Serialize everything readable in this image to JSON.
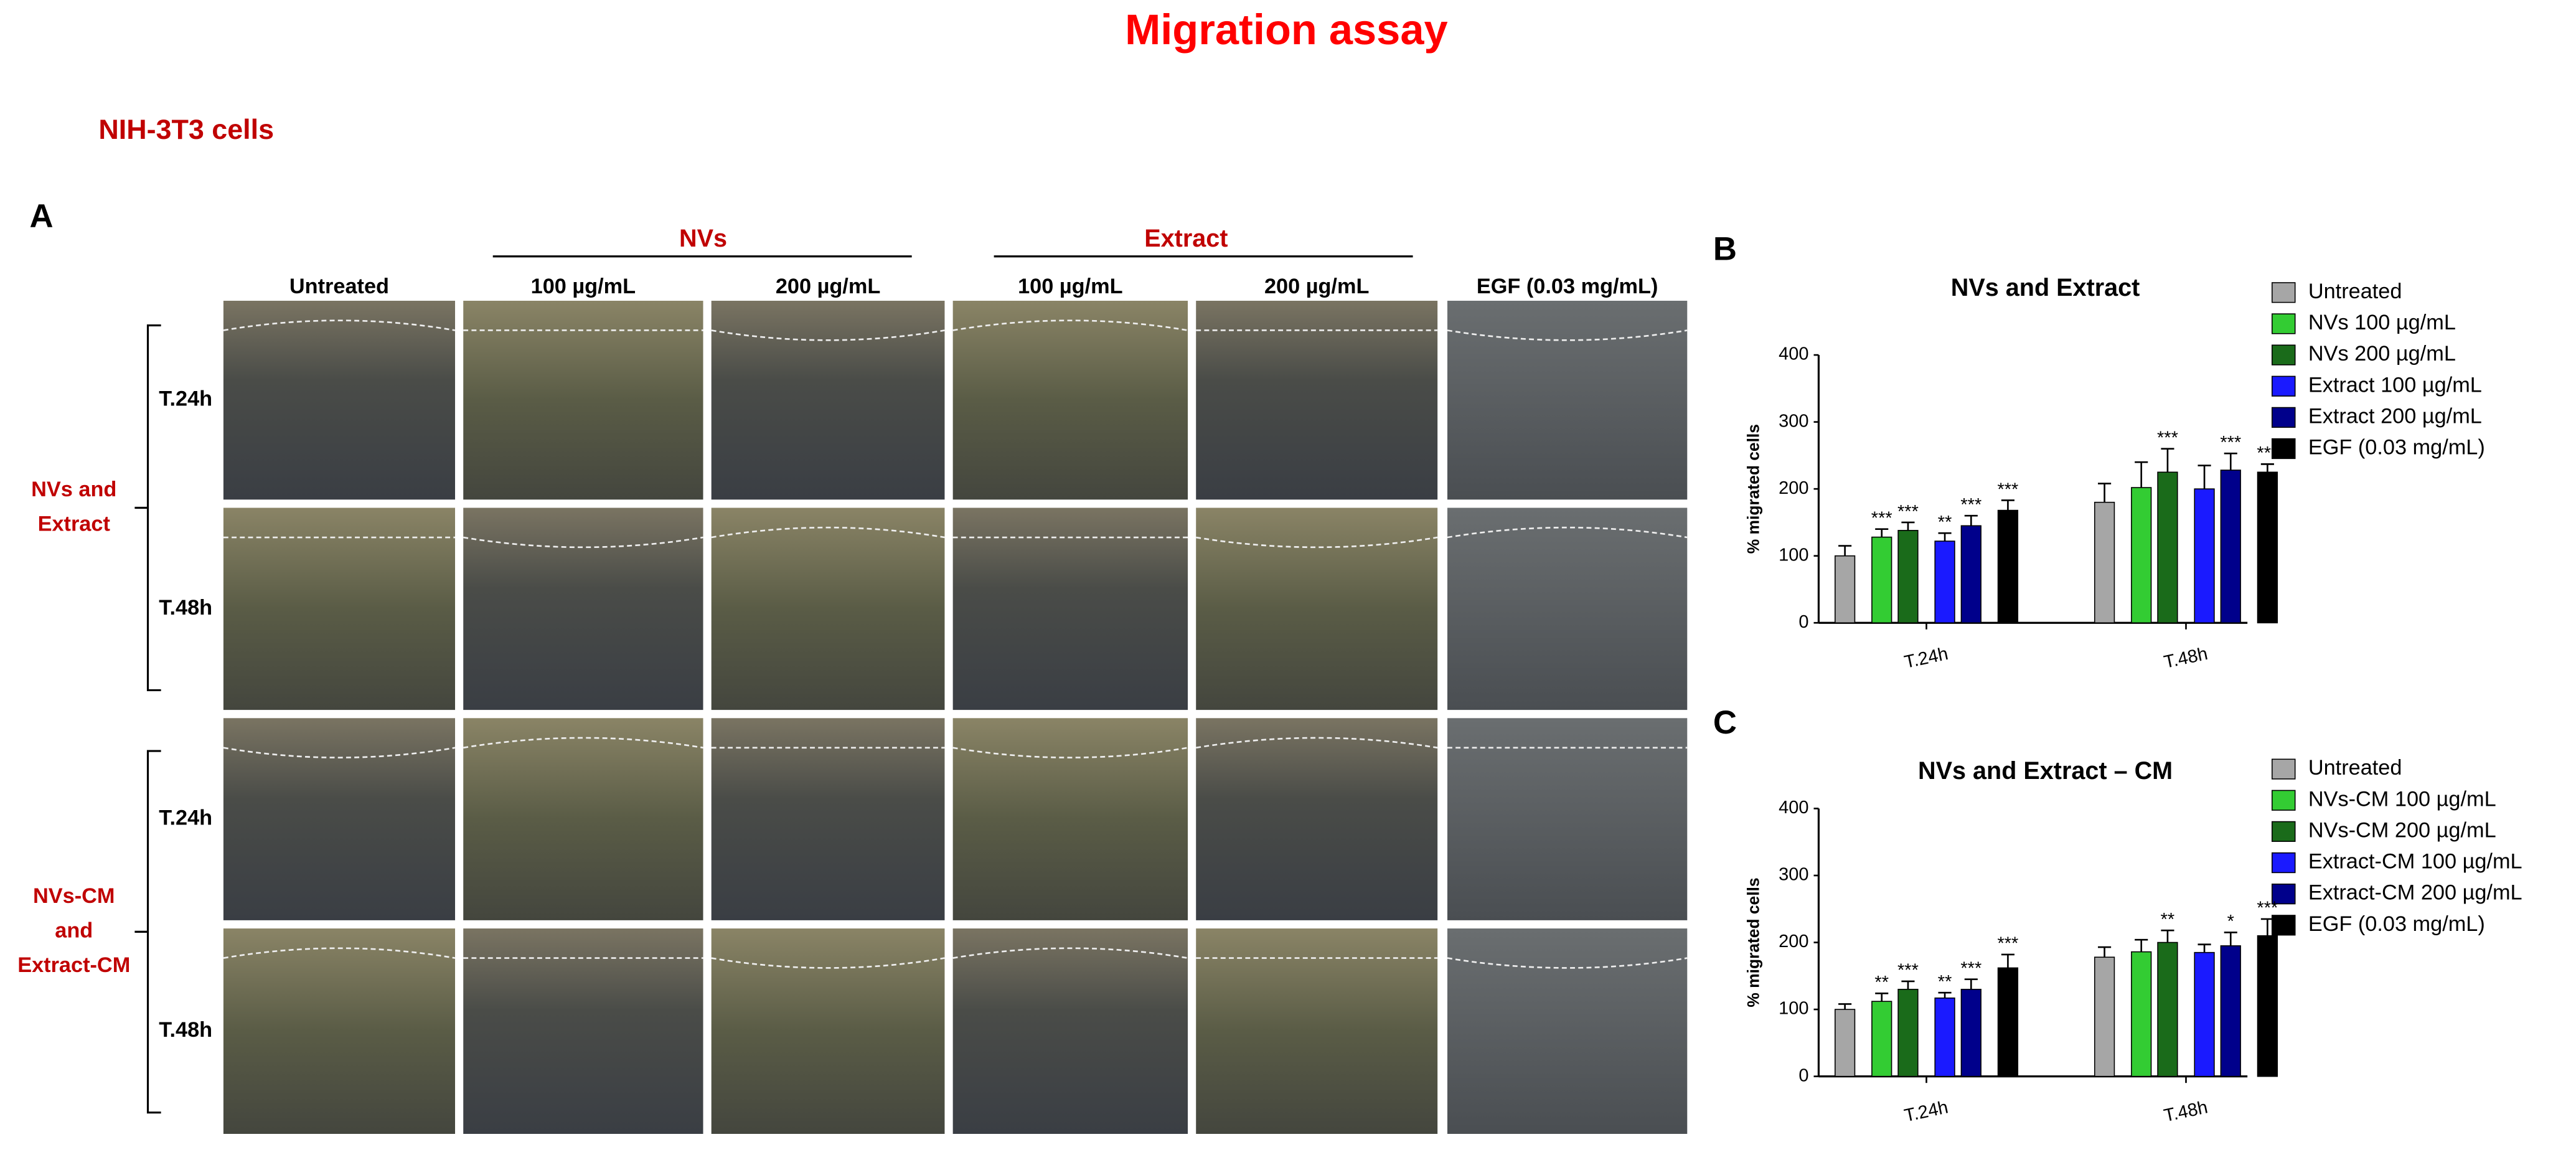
{
  "title": "Migration assay",
  "subtitle": "NIH-3T3 cells",
  "panel_a": {
    "label": "A",
    "column_groups": [
      {
        "label": "NVs"
      },
      {
        "label": "Extract"
      }
    ],
    "columns": [
      "Untreated",
      "100 µg/mL",
      "200 µg/mL",
      "100 µg/mL",
      "200 µg/mL",
      "EGF (0.03 mg/mL)"
    ],
    "row_groups": [
      {
        "label_lines": [
          "NVs and",
          "Extract"
        ],
        "rows": [
          "T.24h",
          "T.48h"
        ]
      },
      {
        "label_lines": [
          "NVs-CM",
          "and",
          "Extract-CM"
        ],
        "rows": [
          "T.24h",
          "T.48h"
        ]
      }
    ]
  },
  "chart_data": [
    {
      "type": "bar",
      "panel_label": "B",
      "title": "NVs and Extract",
      "ylabel": "% migrated cells",
      "categories": [
        "T.24h",
        "T.48h"
      ],
      "ylim": [
        0,
        400
      ],
      "yticks": [
        0,
        100,
        200,
        300,
        400
      ],
      "series": [
        {
          "name": "Untreated",
          "color": "#a6a6a6",
          "values": [
            100,
            180
          ],
          "errors": [
            15,
            28
          ],
          "significance": [
            null,
            null
          ]
        },
        {
          "name": "NVs 100 µg/mL",
          "color": "#33cc33",
          "values": [
            128,
            202
          ],
          "errors": [
            12,
            38
          ],
          "significance": [
            "***",
            null
          ]
        },
        {
          "name": "NVs 200 µg/mL",
          "color": "#1a6b1a",
          "values": [
            138,
            225
          ],
          "errors": [
            12,
            35
          ],
          "significance": [
            "***",
            "***"
          ]
        },
        {
          "name": "Extract 100 µg/mL",
          "color": "#1a1aff",
          "values": [
            122,
            200
          ],
          "errors": [
            12,
            35
          ],
          "significance": [
            "**",
            null
          ]
        },
        {
          "name": "Extract 200 µg/mL",
          "color": "#00008b",
          "values": [
            145,
            228
          ],
          "errors": [
            15,
            25
          ],
          "significance": [
            "***",
            "***"
          ]
        },
        {
          "name": "EGF (0.03 mg/mL)",
          "color": "#000000",
          "values": [
            168,
            225
          ],
          "errors": [
            15,
            12
          ],
          "significance": [
            "***",
            "***"
          ]
        }
      ]
    },
    {
      "type": "bar",
      "panel_label": "C",
      "title": "NVs and Extract – CM",
      "ylabel": "% migrated cells",
      "categories": [
        "T.24h",
        "T.48h"
      ],
      "ylim": [
        0,
        400
      ],
      "yticks": [
        0,
        100,
        200,
        300,
        400
      ],
      "series": [
        {
          "name": "Untreated",
          "color": "#a6a6a6",
          "values": [
            100,
            178
          ],
          "errors": [
            8,
            15
          ],
          "significance": [
            null,
            null
          ]
        },
        {
          "name": "NVs-CM 100 µg/mL",
          "color": "#33cc33",
          "values": [
            112,
            186
          ],
          "errors": [
            12,
            18
          ],
          "significance": [
            "**",
            null
          ]
        },
        {
          "name": "NVs-CM 200 µg/mL",
          "color": "#1a6b1a",
          "values": [
            130,
            200
          ],
          "errors": [
            12,
            18
          ],
          "significance": [
            "***",
            "**"
          ]
        },
        {
          "name": "Extract-CM 100 µg/mL",
          "color": "#1a1aff",
          "values": [
            117,
            185
          ],
          "errors": [
            8,
            12
          ],
          "significance": [
            "**",
            null
          ]
        },
        {
          "name": "Extract-CM 200 µg/mL",
          "color": "#00008b",
          "values": [
            130,
            195
          ],
          "errors": [
            15,
            20
          ],
          "significance": [
            "***",
            "*"
          ]
        },
        {
          "name": "EGF (0.03 mg/mL)",
          "color": "#000000",
          "values": [
            162,
            210
          ],
          "errors": [
            20,
            25
          ],
          "significance": [
            "***",
            "***"
          ]
        }
      ]
    }
  ]
}
